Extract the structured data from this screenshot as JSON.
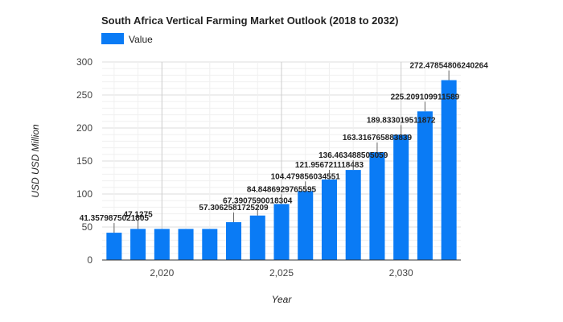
{
  "chart_data": {
    "type": "bar",
    "title": "South Africa Vertical Farming Market Outlook (2018 to 2032)",
    "xlabel": "Year",
    "ylabel": "USD USD Million",
    "legend": {
      "position": "top-left",
      "entries": [
        "Value"
      ]
    },
    "grid": true,
    "ylim": [
      0,
      300
    ],
    "yticks": [
      0,
      50,
      100,
      150,
      200,
      250,
      300
    ],
    "xticks": [
      {
        "value": 2020,
        "label": "2,020"
      },
      {
        "value": 2025,
        "label": "2,025"
      },
      {
        "value": 2030,
        "label": "2,030"
      }
    ],
    "x": [
      2018,
      2019,
      2020,
      2021,
      2022,
      2023,
      2024,
      2025,
      2026,
      2027,
      2028,
      2029,
      2030,
      2031,
      2032
    ],
    "series": [
      {
        "name": "Value",
        "color": "#0a7bf5",
        "values": [
          41.3579875021805,
          47.1275,
          47.1275,
          47.1275,
          47.1275,
          57.3062581725209,
          67.3907590018304,
          84.8486929765595,
          104.479856034551,
          121.956721118483,
          136.463488505059,
          163.316765883839,
          189.833019511872,
          225.209109911589,
          272.47854806240264
        ],
        "labels": [
          "41.3579875021805",
          "47.1275",
          "",
          "",
          "",
          "57.3062581725209",
          "67.3907590018304",
          "84.8486929765595",
          "104.479856034551",
          "121.956721118483",
          "136.463488505059",
          "163.316765883839",
          "189.833019511872",
          "225.209109911589",
          "272.47854806240264"
        ]
      }
    ]
  },
  "styles": {
    "bar_color": "#0a7bf5",
    "grid_color": "#e6e6e6",
    "axis_color": "#333333"
  }
}
